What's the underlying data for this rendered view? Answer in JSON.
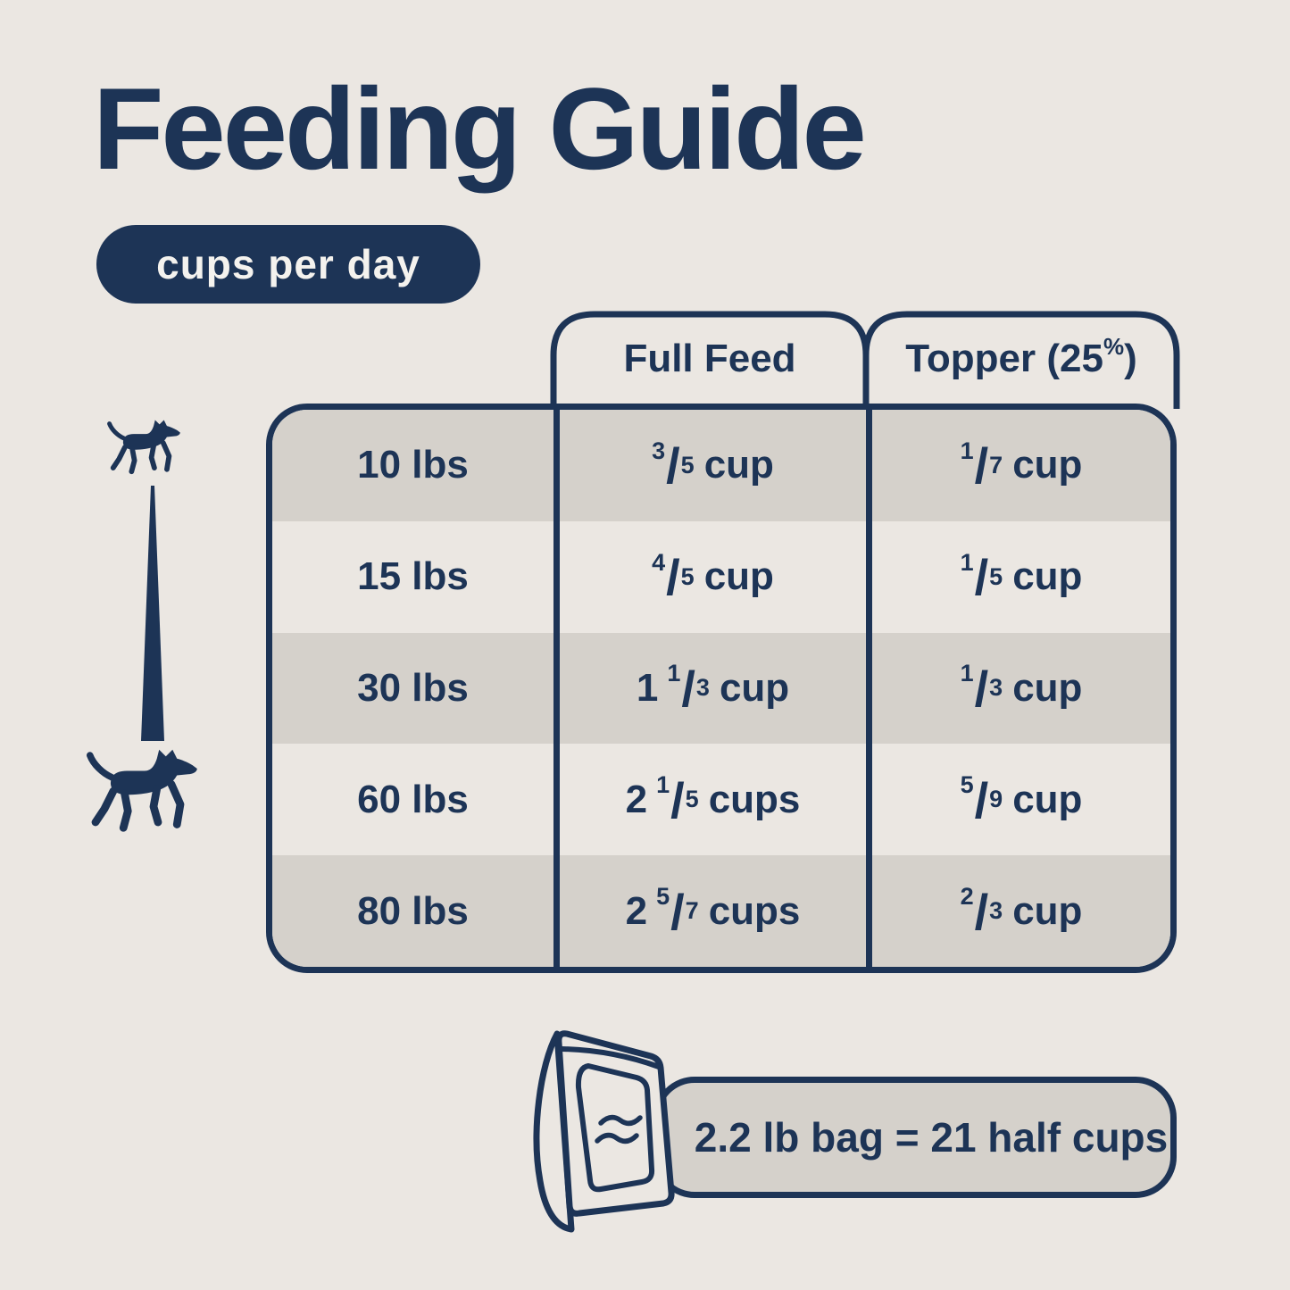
{
  "colors": {
    "navy": "#1d3456",
    "background": "#ebe7e2",
    "row_gray": "#d5d1cb",
    "badge_text": "#f4f2ee"
  },
  "title": "Feeding Guide",
  "badge": {
    "label": "cups per day"
  },
  "fraction_slash": "/",
  "table": {
    "headers": {
      "weight_column": "",
      "full_feed": "Full Feed",
      "topper_pre": "Topper (25",
      "topper_sup": "%",
      "topper_post": ")"
    },
    "rows": [
      {
        "weight": "10 lbs",
        "full": {
          "whole": "",
          "num": "3",
          "den": "5",
          "unit": "cup"
        },
        "topper": {
          "whole": "",
          "num": "1",
          "den": "7",
          "unit": "cup"
        }
      },
      {
        "weight": "15 lbs",
        "full": {
          "whole": "",
          "num": "4",
          "den": "5",
          "unit": "cup"
        },
        "topper": {
          "whole": "",
          "num": "1",
          "den": "5",
          "unit": "cup"
        }
      },
      {
        "weight": "30 lbs",
        "full": {
          "whole": "1",
          "num": "1",
          "den": "3",
          "unit": "cup"
        },
        "topper": {
          "whole": "",
          "num": "1",
          "den": "3",
          "unit": "cup"
        }
      },
      {
        "weight": "60 lbs",
        "full": {
          "whole": "2",
          "num": "1",
          "den": "5",
          "unit": "cups"
        },
        "topper": {
          "whole": "",
          "num": "5",
          "den": "9",
          "unit": "cup"
        }
      },
      {
        "weight": "80 lbs",
        "full": {
          "whole": "2",
          "num": "5",
          "den": "7",
          "unit": "cups"
        },
        "topper": {
          "whole": "",
          "num": "2",
          "den": "3",
          "unit": "cup"
        }
      }
    ]
  },
  "footer": {
    "note": "2.2 lb bag = 21 half cups"
  },
  "icons": {
    "small_dog": "small-dog-icon",
    "large_dog": "large-dog-icon",
    "size_taper": "size-scale-taper",
    "bag": "dog-food-bag-icon",
    "waves": "wave-logo-icon"
  }
}
